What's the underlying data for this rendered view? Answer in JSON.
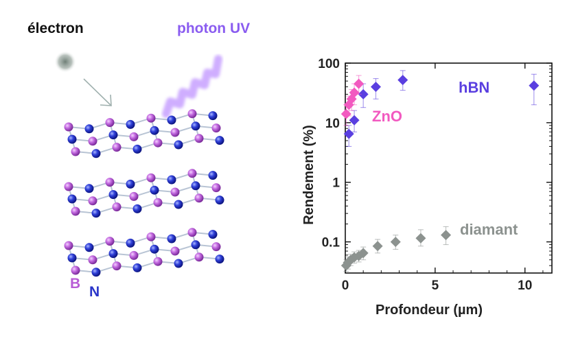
{
  "illustration": {
    "electron_label": "électron",
    "photon_label": "photon UV",
    "legend_b": "B",
    "legend_n": "N",
    "colors": {
      "boron": "#b85cd6",
      "nitrogen": "#2a35c9",
      "photon": "#c9a4ff",
      "electron": "#7a8a82"
    }
  },
  "chart_data": {
    "type": "scatter",
    "xlabel": "Profondeur (µm)",
    "ylabel": "Rendement (%)",
    "xlim": [
      0,
      11.5
    ],
    "ylim": [
      0.03,
      100
    ],
    "yscale": "log",
    "x_ticks": [
      0,
      5,
      10
    ],
    "y_ticks": [
      0.1,
      1,
      10,
      100
    ],
    "y_tick_labels": [
      "0.1",
      "1",
      "10",
      "100"
    ],
    "grid": false,
    "series": [
      {
        "name": "hBN",
        "color": "#5a3fe0",
        "marker": "diamond",
        "points": [
          {
            "x": 0.2,
            "y": 6.5,
            "lo": 4.0,
            "hi": 9.0
          },
          {
            "x": 0.5,
            "y": 11,
            "lo": 7.0,
            "hi": 16
          },
          {
            "x": 1.0,
            "y": 30,
            "lo": 18,
            "hi": 45
          },
          {
            "x": 1.7,
            "y": 40,
            "lo": 25,
            "hi": 55
          },
          {
            "x": 3.2,
            "y": 52,
            "lo": 35,
            "hi": 75
          },
          {
            "x": 10.5,
            "y": 42,
            "lo": 20,
            "hi": 65
          }
        ]
      },
      {
        "name": "ZnO",
        "color": "#f25ac0",
        "marker": "diamond",
        "points": [
          {
            "x": 0.05,
            "y": 14,
            "lo": 9,
            "hi": 20
          },
          {
            "x": 0.2,
            "y": 20,
            "lo": 13,
            "hi": 28
          },
          {
            "x": 0.35,
            "y": 25,
            "lo": 16,
            "hi": 36
          },
          {
            "x": 0.5,
            "y": 32,
            "lo": 20,
            "hi": 45
          },
          {
            "x": 0.75,
            "y": 45,
            "lo": 30,
            "hi": 62
          }
        ]
      },
      {
        "name": "diamant",
        "color": "#8c928f",
        "marker": "diamond",
        "points": [
          {
            "x": 0.05,
            "y": 0.04,
            "lo": 0.032,
            "hi": 0.05
          },
          {
            "x": 0.15,
            "y": 0.045,
            "lo": 0.035,
            "hi": 0.056
          },
          {
            "x": 0.3,
            "y": 0.05,
            "lo": 0.04,
            "hi": 0.062
          },
          {
            "x": 0.5,
            "y": 0.055,
            "lo": 0.044,
            "hi": 0.068
          },
          {
            "x": 0.75,
            "y": 0.058,
            "lo": 0.046,
            "hi": 0.072
          },
          {
            "x": 1.0,
            "y": 0.065,
            "lo": 0.05,
            "hi": 0.082
          },
          {
            "x": 1.8,
            "y": 0.085,
            "lo": 0.065,
            "hi": 0.11
          },
          {
            "x": 2.8,
            "y": 0.1,
            "lo": 0.075,
            "hi": 0.13
          },
          {
            "x": 4.2,
            "y": 0.115,
            "lo": 0.085,
            "hi": 0.16
          },
          {
            "x": 5.6,
            "y": 0.13,
            "lo": 0.09,
            "hi": 0.18
          }
        ]
      }
    ]
  }
}
